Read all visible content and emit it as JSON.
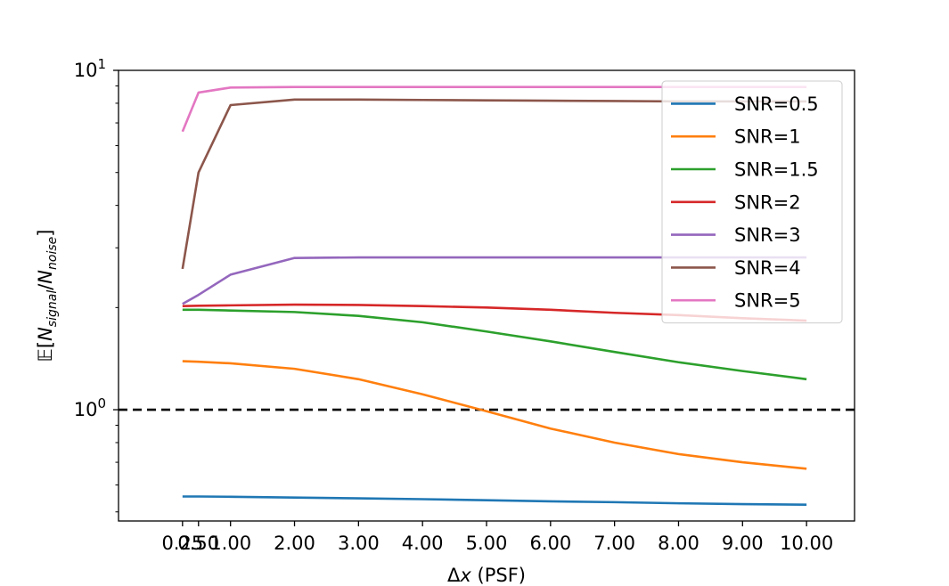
{
  "chart_data": {
    "type": "line",
    "xscale": "linear",
    "yscale": "log",
    "xlim": [
      -0.75,
      10.75
    ],
    "ylim": [
      0.47,
      10.0
    ],
    "x": [
      0.25,
      0.5,
      1,
      2,
      3,
      4,
      5,
      6,
      7,
      8,
      9,
      10
    ],
    "xticks": [
      0.25,
      0.5,
      1,
      2,
      3,
      4,
      5,
      6,
      7,
      8,
      9,
      10
    ],
    "xtick_labels": [
      "0.25",
      "0.50",
      "1.00",
      "2.00",
      "3.00",
      "4.00",
      "5.00",
      "6.00",
      "7.00",
      "8.00",
      "9.00",
      "10.00"
    ],
    "yticks": [
      {
        "value": 1,
        "base": "10",
        "exp": "0"
      },
      {
        "value": 10,
        "base": "10",
        "exp": "1"
      }
    ],
    "xlabel_symbol": "Δ",
    "xlabel_var": "x",
    "xlabel_unit": " (PSF)",
    "ylabel_parts": {
      "E": "𝔼",
      "open": "[",
      "N": "N",
      "sub1": "signal",
      "slash": "/",
      "N2": "N",
      "sub2": "noise",
      "close": "]"
    },
    "reference_line": {
      "y": 1,
      "style": "dashed",
      "color": "#000000"
    },
    "legend_position": "top-right",
    "series": [
      {
        "name": "SNR=0.5",
        "color": "#1f77b4",
        "values": [
          0.555,
          0.555,
          0.554,
          0.551,
          0.548,
          0.545,
          0.541,
          0.537,
          0.534,
          0.53,
          0.527,
          0.525
        ]
      },
      {
        "name": "SNR=1",
        "color": "#ff7f0e",
        "values": [
          1.39,
          1.385,
          1.37,
          1.32,
          1.23,
          1.11,
          0.99,
          0.88,
          0.8,
          0.74,
          0.7,
          0.67
        ]
      },
      {
        "name": "SNR=1.5",
        "color": "#2ca02c",
        "values": [
          1.97,
          1.97,
          1.96,
          1.94,
          1.89,
          1.81,
          1.7,
          1.59,
          1.48,
          1.38,
          1.3,
          1.23
        ]
      },
      {
        "name": "SNR=2",
        "color": "#d62728",
        "values": [
          2.02,
          2.025,
          2.03,
          2.04,
          2.035,
          2.02,
          2.0,
          1.97,
          1.93,
          1.9,
          1.86,
          1.83
        ]
      },
      {
        "name": "SNR=3",
        "color": "#9467bd",
        "values": [
          2.05,
          2.18,
          2.5,
          2.8,
          2.81,
          2.81,
          2.81,
          2.81,
          2.81,
          2.81,
          2.81,
          2.81
        ]
      },
      {
        "name": "SNR=4",
        "color": "#8c564b",
        "values": [
          2.6,
          5.0,
          7.9,
          8.2,
          8.2,
          8.18,
          8.16,
          8.14,
          8.12,
          8.1,
          8.1,
          8.1
        ]
      },
      {
        "name": "SNR=5",
        "color": "#e377c2",
        "values": [
          6.6,
          8.6,
          8.9,
          8.93,
          8.93,
          8.93,
          8.93,
          8.93,
          8.93,
          8.93,
          8.93,
          8.93
        ]
      }
    ]
  }
}
